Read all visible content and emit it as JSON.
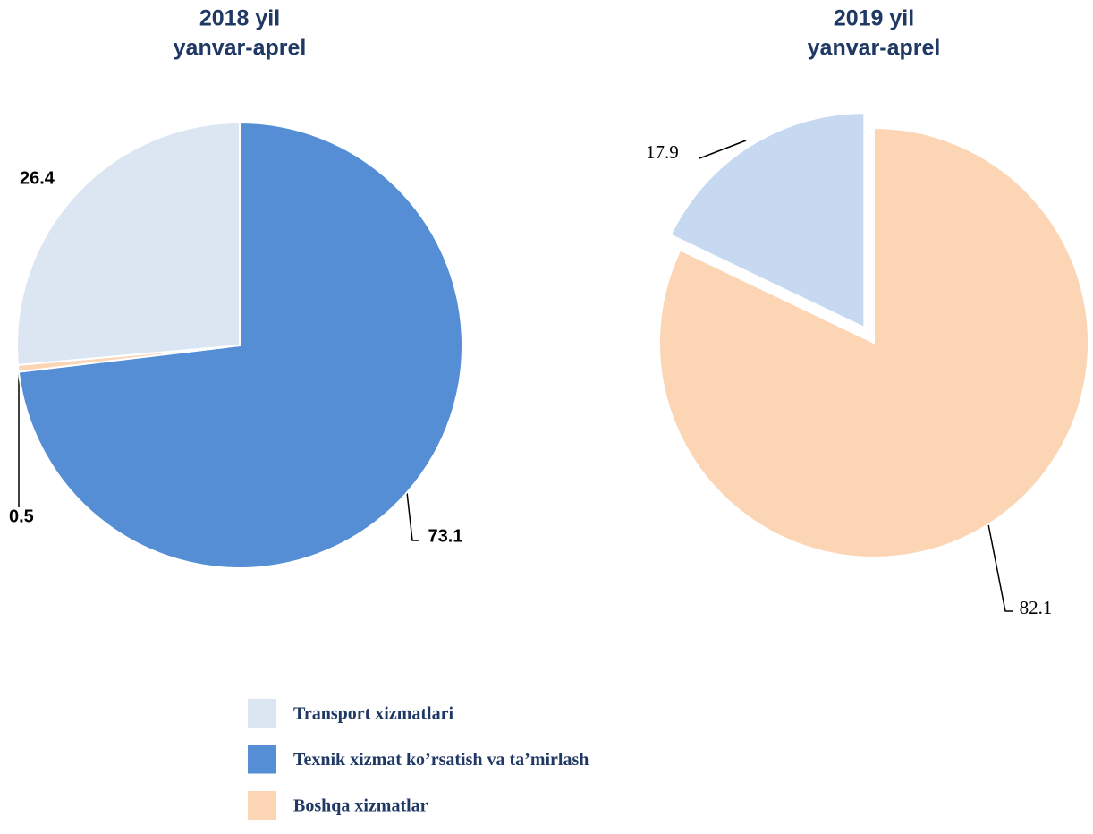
{
  "chart_data": [
    {
      "type": "pie",
      "title": "2018 yil",
      "subtitle": "yanvar-aprel",
      "categories": [
        "Transport xizmatlari",
        "Texnik xizmat ko’rsatish va ta’mirlash",
        "Boshqa xizmatlar"
      ],
      "values": [
        26.4,
        73.1,
        0.5
      ],
      "colors": [
        "#dce6f2",
        "#558ed5",
        "#fcd5b5"
      ]
    },
    {
      "type": "pie",
      "title": "2019 yil",
      "subtitle": "yanvar-aprel",
      "values": [
        17.9,
        null,
        82.1
      ],
      "colors": [
        "#c6d9f0",
        "#558ed5",
        "#fcd5b5"
      ]
    }
  ]
}
